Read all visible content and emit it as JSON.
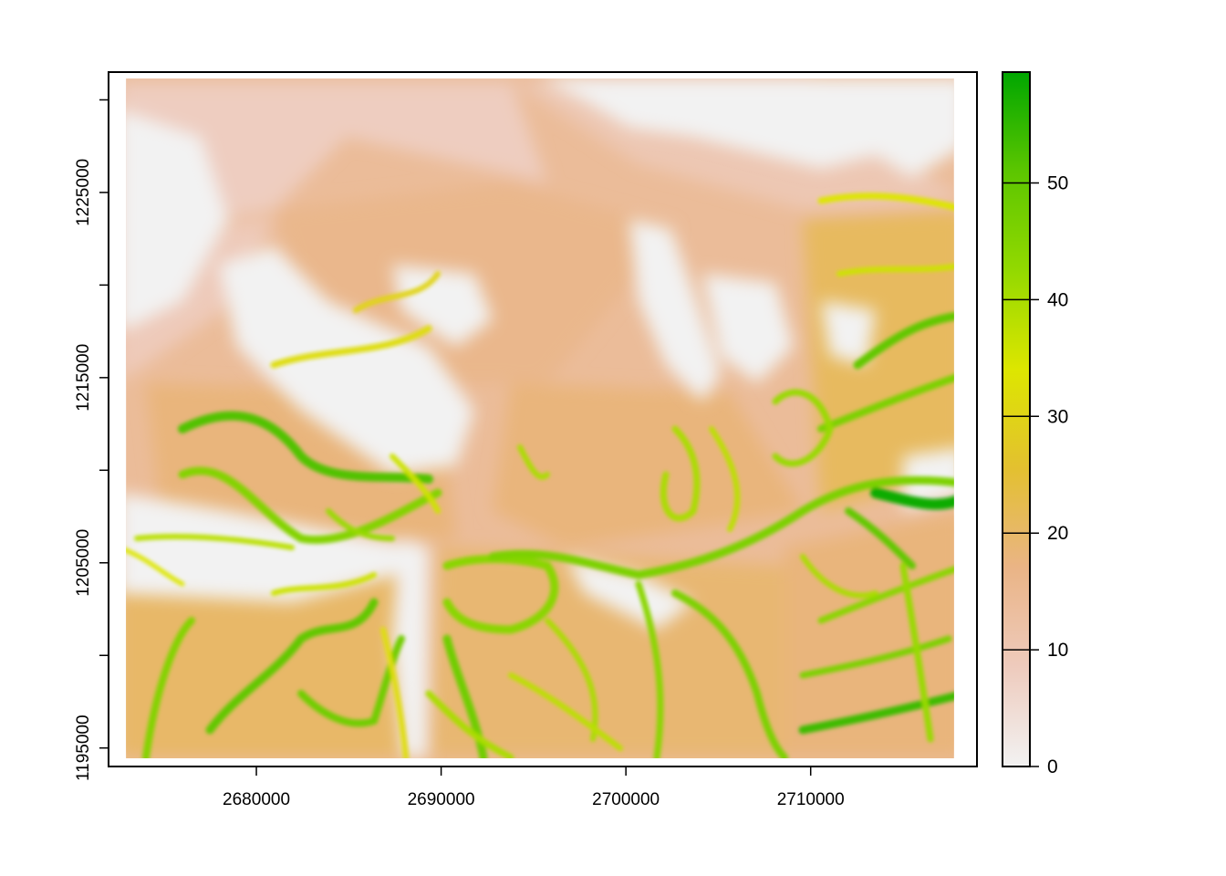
{
  "chart_data": {
    "type": "heatmap",
    "title": "",
    "xlabel": "",
    "ylabel": "",
    "xlim": [
      2672000,
      2719000
    ],
    "ylim": [
      1194000,
      1231500
    ],
    "x_ticks": [
      {
        "value": 2680000,
        "label": "2680000"
      },
      {
        "value": 2690000,
        "label": "2690000"
      },
      {
        "value": 2700000,
        "label": "2700000"
      },
      {
        "value": 2710000,
        "label": "2710000"
      }
    ],
    "y_ticks": [
      {
        "value": 1195000,
        "label": "1195000"
      },
      {
        "value": 1205000,
        "label": "1205000"
      },
      {
        "value": 1215000,
        "label": "1215000"
      },
      {
        "value": 1225000,
        "label": "1225000"
      }
    ],
    "raster_extent": {
      "xmin": 2672400,
      "xmax": 2718400,
      "ymin": 1195000,
      "ymax": 1231000
    },
    "value_range": [
      0,
      60
    ],
    "colorbar": {
      "min": 0,
      "max": 59.5,
      "ticks": [
        {
          "value": 0,
          "label": "0"
        },
        {
          "value": 10,
          "label": "10"
        },
        {
          "value": 20,
          "label": "20"
        },
        {
          "value": 30,
          "label": "30"
        },
        {
          "value": 40,
          "label": "40"
        },
        {
          "value": 50,
          "label": "50"
        }
      ],
      "colors": [
        "#f2f2f2",
        "#eecbbd",
        "#eab486",
        "#e3c030",
        "#dde600",
        "#93d900",
        "#5cc600",
        "#00a600"
      ]
    }
  }
}
